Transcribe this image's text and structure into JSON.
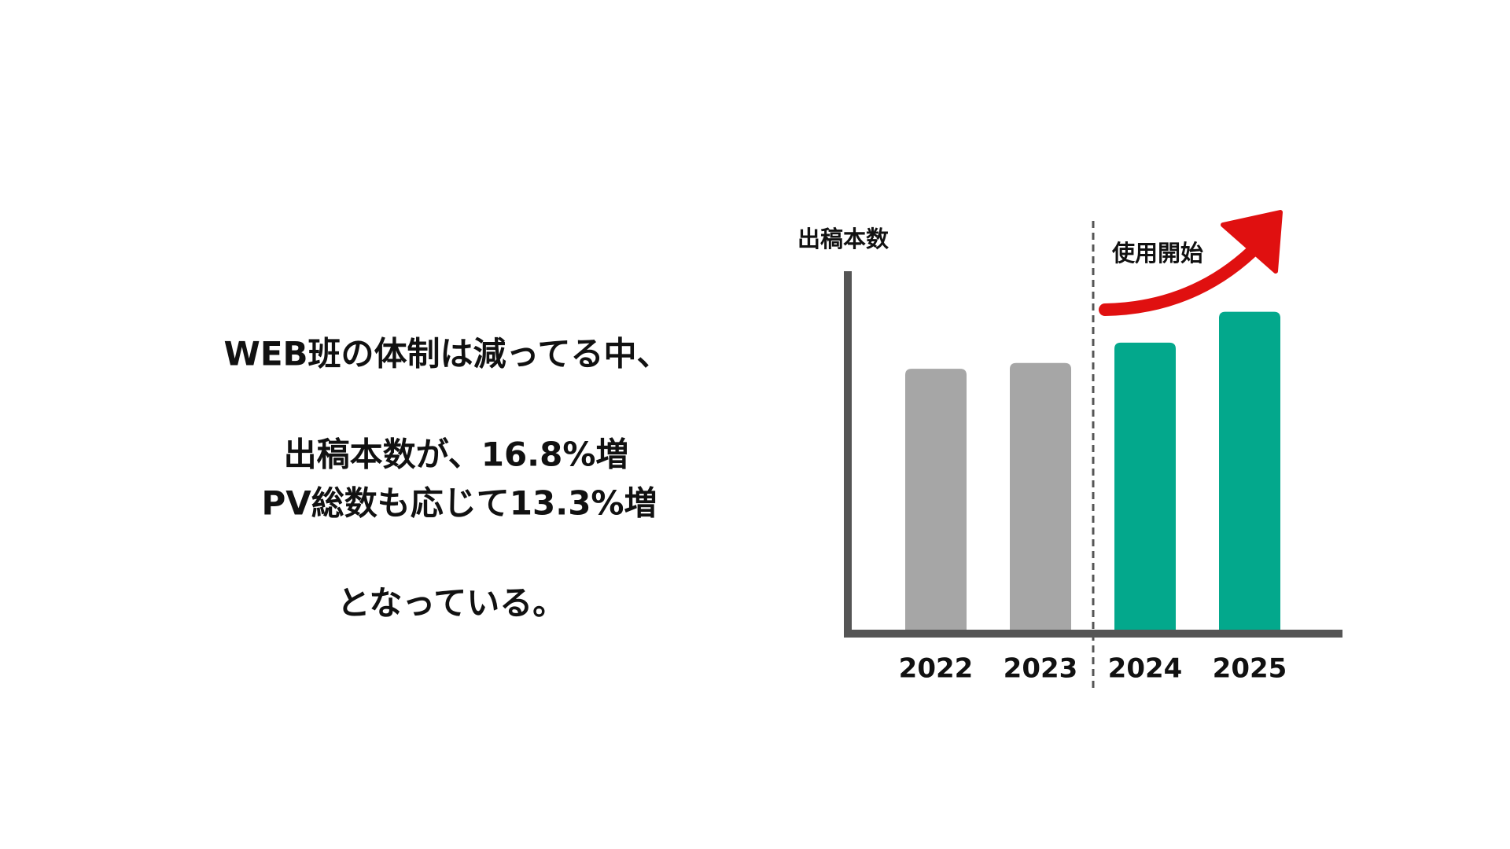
{
  "text": [
    "WEB班の体制は減ってる中、",
    "出稿本数が、16.8%増",
    "PV総数も応じて13.3%増",
    "となっている。"
  ],
  "chart_data": {
    "type": "bar",
    "y_label": "出稿本数",
    "annotation": "使用開始",
    "categories": [
      "2022",
      "2023",
      "2024",
      "2025"
    ],
    "values": [
      271,
      277,
      298,
      330
    ],
    "colors": [
      "#a6a6a6",
      "#a6a6a6",
      "#03a88c",
      "#03a88c"
    ],
    "ylim": [
      0,
      372
    ]
  }
}
